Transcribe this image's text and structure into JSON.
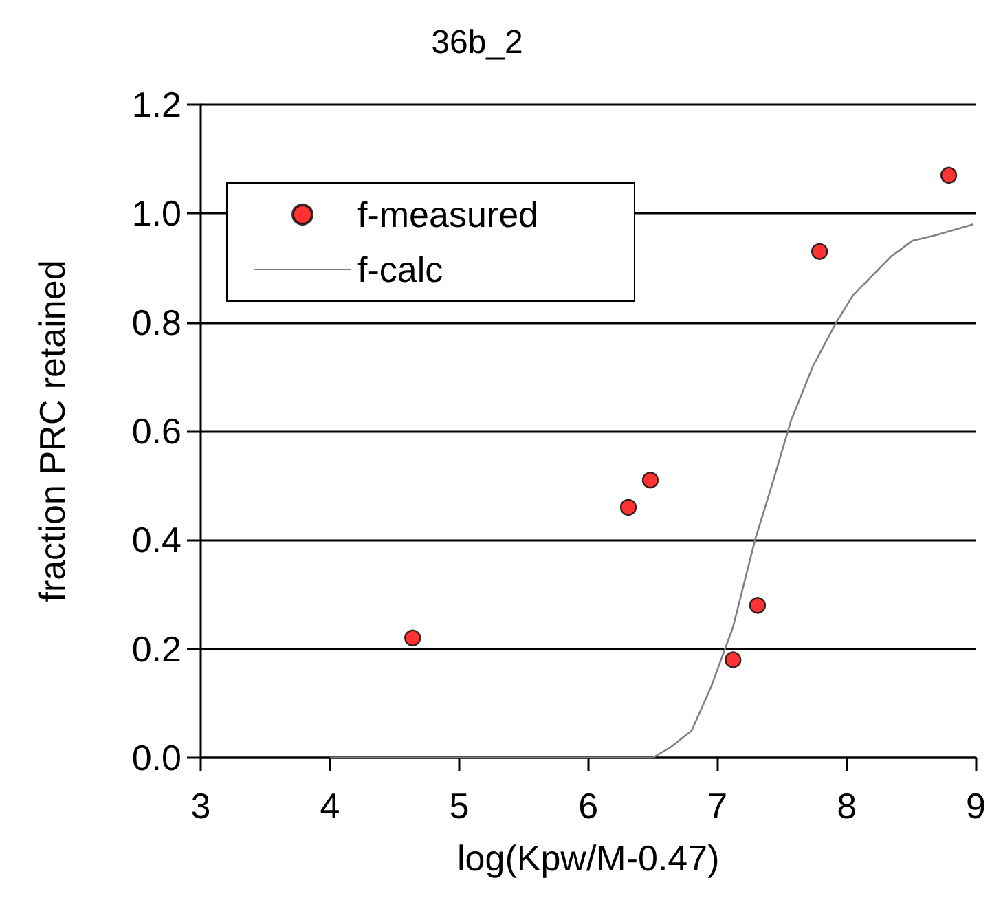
{
  "chart_data": {
    "type": "scatter",
    "title": "36b_2",
    "xlabel": "log(Kpw/M-0.47)",
    "ylabel": "fraction PRC retained",
    "xlim": [
      3,
      9
    ],
    "xticks": [
      3,
      4,
      5,
      6,
      7,
      8,
      9
    ],
    "ylim": [
      0,
      1.2
    ],
    "yticks": [
      {
        "value": 0,
        "label": "0.0"
      },
      0.2,
      0.4,
      0.6,
      0.8,
      {
        "value": 1,
        "label": "1.0"
      },
      1.2
    ],
    "grid": "y",
    "legend": "top left",
    "series": [
      {
        "name": "f-measured",
        "marker": "circle",
        "color": "#ff0000",
        "x": [
          4.64,
          6.31,
          6.48,
          7.12,
          7.31,
          7.79,
          8.79
        ],
        "values": [
          0.22,
          0.46,
          0.51,
          0.18,
          0.28,
          0.93,
          1.07
        ]
      },
      {
        "name": "f-calc",
        "type": "line",
        "marker": "none",
        "line_style": "solid",
        "color": "#808080",
        "x": [
          4.0,
          6.5,
          6.64,
          6.8,
          6.95,
          7.12,
          7.29,
          7.42,
          7.57,
          7.74,
          7.92,
          8.05,
          8.34,
          8.51,
          8.69,
          8.98
        ],
        "values": [
          0,
          0,
          0.02,
          0.05,
          0.13,
          0.24,
          0.4,
          0.5,
          0.62,
          0.72,
          0.8,
          0.85,
          0.92,
          0.95,
          0.96,
          0.98
        ]
      }
    ]
  }
}
